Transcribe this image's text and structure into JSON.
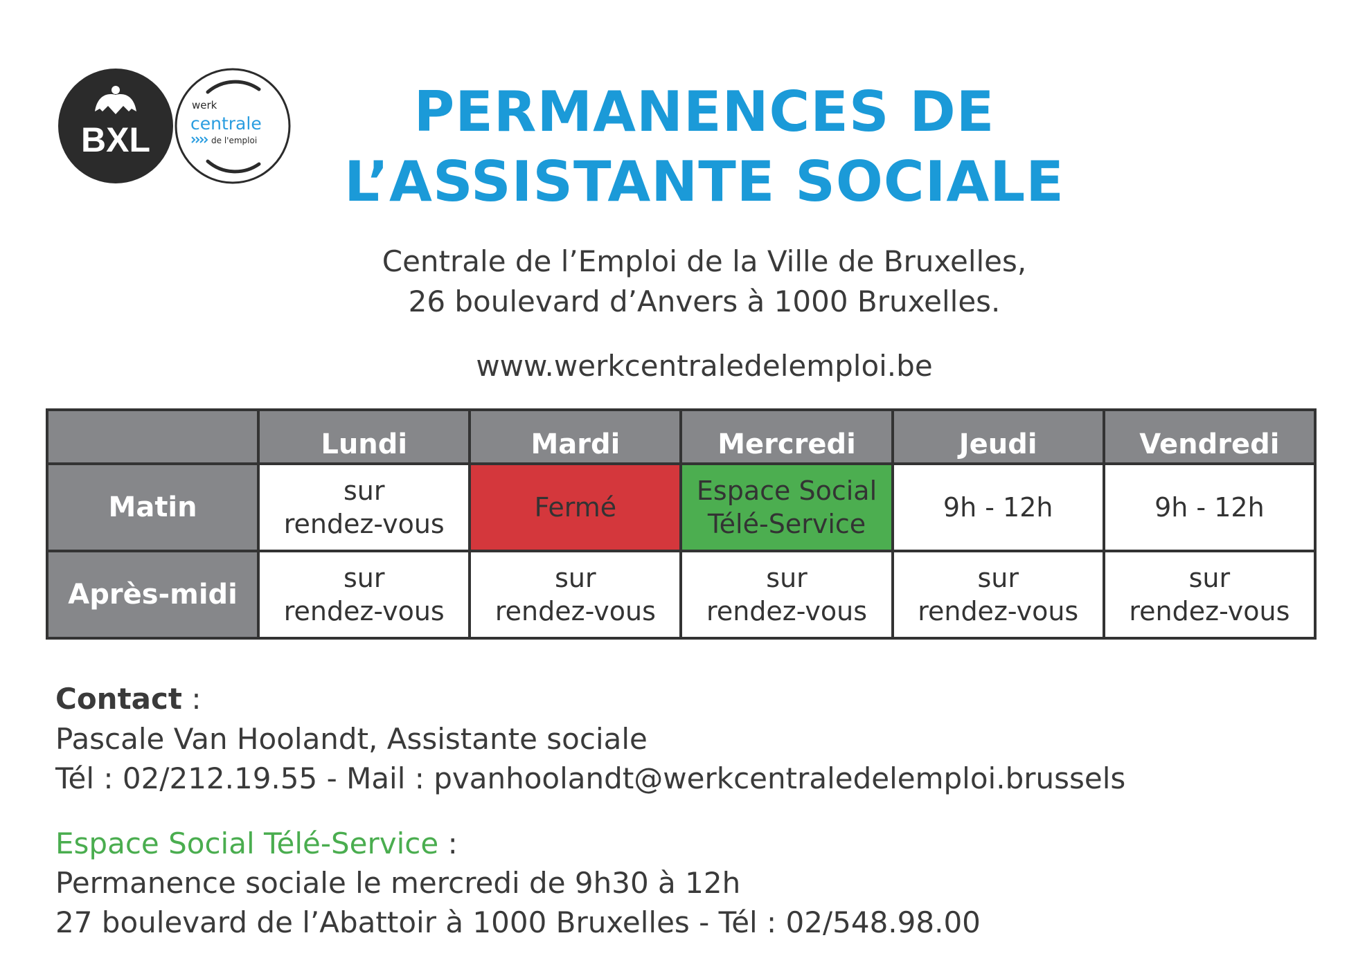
{
  "logos": {
    "bxl": "BXL",
    "werk": "werk",
    "centrale": "centrale",
    "de_lemploi": "de l'emploi"
  },
  "title": {
    "line1": "PERMANENCES DE",
    "line2": "L’ASSISTANTE SOCIALE"
  },
  "address": {
    "line1": "Centrale de l’Emploi de la Ville de Bruxelles,",
    "line2": "26 boulevard d’Anvers à 1000 Bruxelles.",
    "website": "www.werkcentraledelemploi.be"
  },
  "schedule": {
    "days": [
      "Lundi",
      "Mardi",
      "Mercredi",
      "Jeudi",
      "Vendredi"
    ],
    "rows": [
      {
        "label": "Matin",
        "cells": [
          {
            "l1": "sur",
            "l2": "rendez-vous",
            "status": "normal"
          },
          {
            "l1": "Fermé",
            "l2": "",
            "status": "closed"
          },
          {
            "l1": "Espace Social",
            "l2": "Télé-Service",
            "status": "external"
          },
          {
            "l1": "9h - 12h",
            "l2": "",
            "status": "normal"
          },
          {
            "l1": "9h - 12h",
            "l2": "",
            "status": "normal"
          }
        ]
      },
      {
        "label": "Après-midi",
        "cells": [
          {
            "l1": "sur",
            "l2": "rendez-vous",
            "status": "normal"
          },
          {
            "l1": "sur",
            "l2": "rendez-vous",
            "status": "normal"
          },
          {
            "l1": "sur",
            "l2": "rendez-vous",
            "status": "normal"
          },
          {
            "l1": "sur",
            "l2": "rendez-vous",
            "status": "normal"
          },
          {
            "l1": "sur",
            "l2": "rendez-vous",
            "status": "normal"
          }
        ]
      }
    ]
  },
  "contact": {
    "heading": "Contact",
    "colon": " :",
    "name": "Pascale Van Hoolandt, Assistante sociale",
    "phone_mail": "Tél : 02/212.19.55 - Mail : pvanhoolandt@werkcentraledelemploi.brussels"
  },
  "espace": {
    "heading": "Espace Social Télé-Service",
    "colon": " :",
    "line1": "Permanence sociale le mercredi de 9h30 à 12h",
    "line2": "27 boulevard de l’Abattoir à 1000 Bruxelles - Tél : 02/548.98.00"
  },
  "colors": {
    "title": "#1b9ad8",
    "header": "#86878a",
    "closed": "#d4373c",
    "external": "#4cae50"
  }
}
